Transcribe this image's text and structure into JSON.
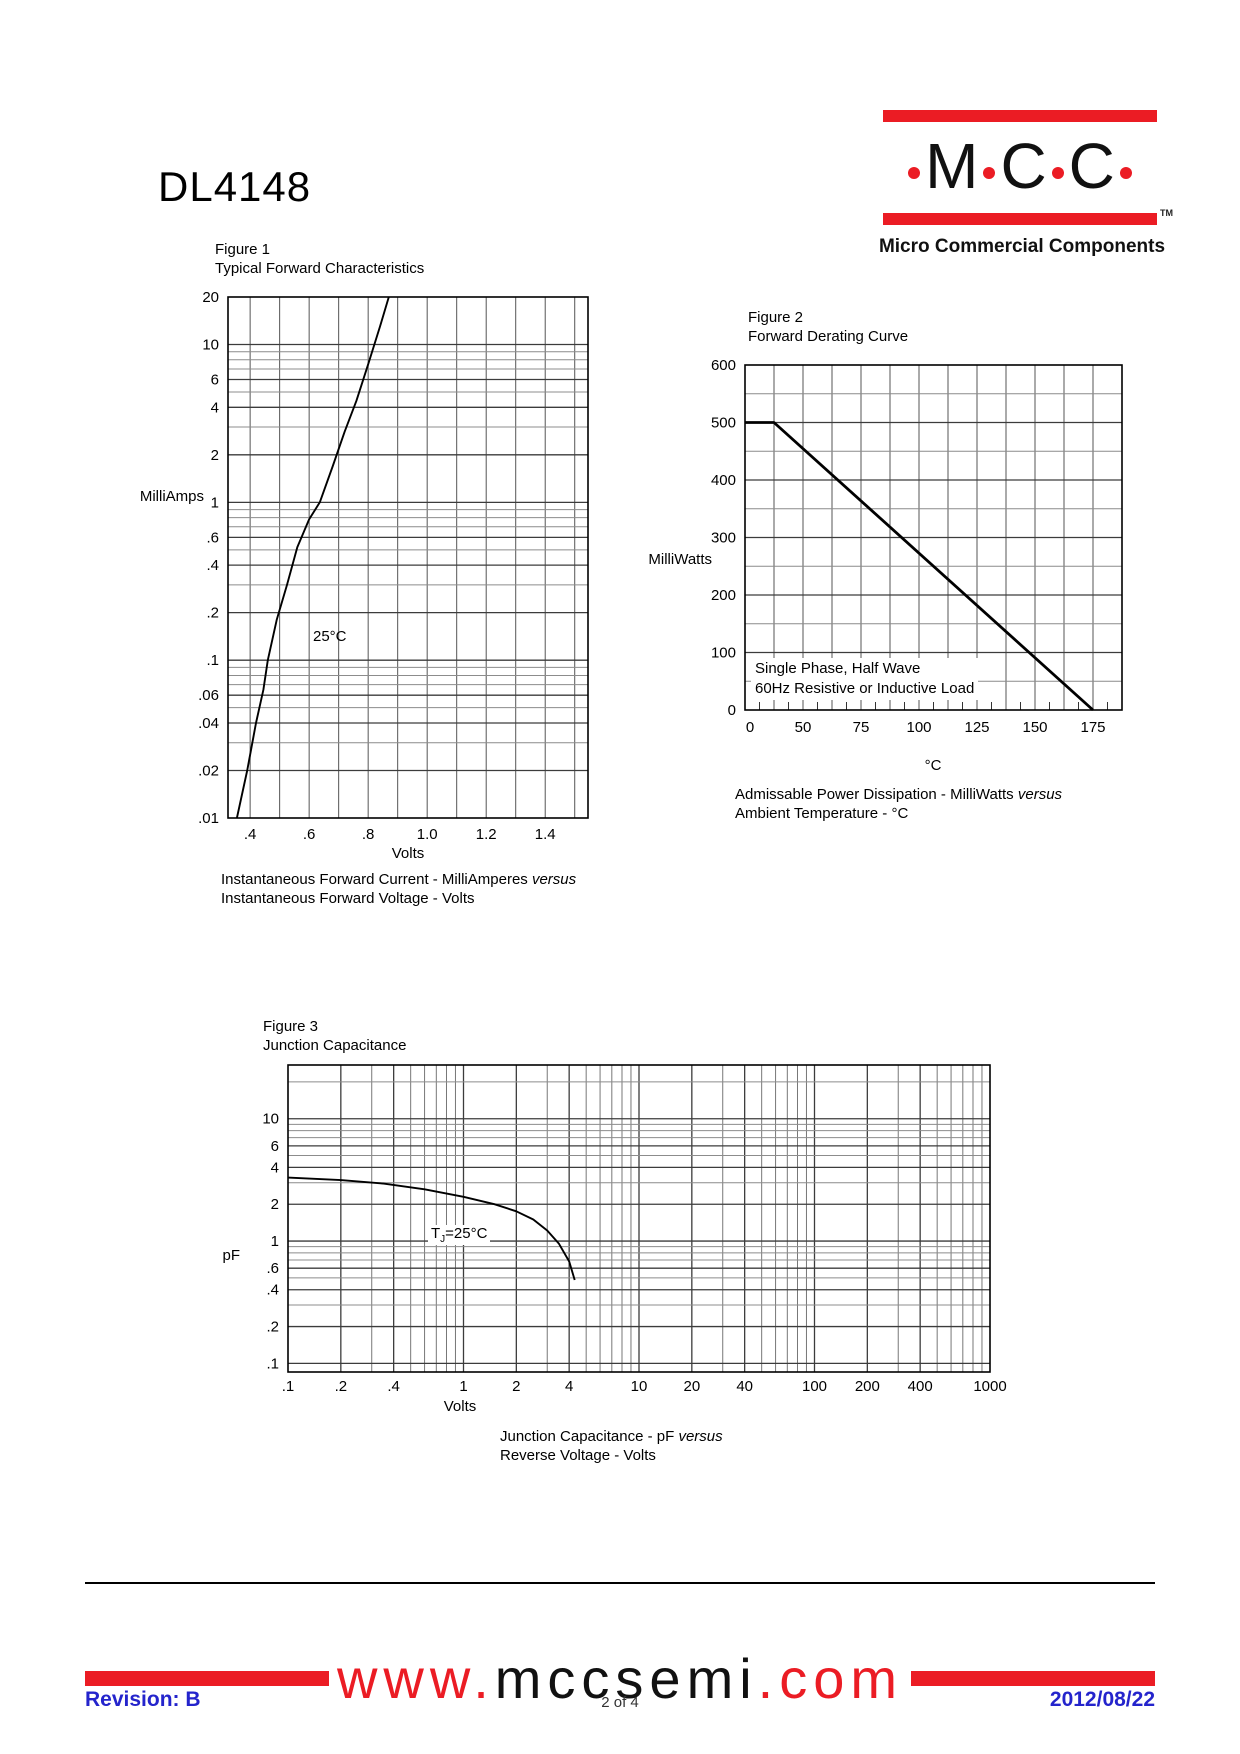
{
  "page": {
    "part_number": "DL4148",
    "page_indicator": "2 of 4",
    "revision": "Revision: B",
    "date": "2012/08/22"
  },
  "colors": {
    "brand_red": "#EB1C24",
    "footer_blue": "#2424CC",
    "grid_minor": "#8c8c8c",
    "grid_major": "#3c3c3c",
    "curve": "#000000"
  },
  "logo": {
    "letters": [
      "M",
      "C",
      "C"
    ],
    "tm": "TM",
    "subtitle": "Micro Commercial Components"
  },
  "footer": {
    "url_www": "www.",
    "url_domain": "mccsemi",
    "url_com": ".com"
  },
  "chart_data": [
    {
      "type": "line",
      "figure_label": "Figure 1",
      "title": "Typical Forward Characteristics",
      "xlabel": "Volts",
      "ylabel": "MilliAmps",
      "x_scale": "linear",
      "y_scale": "log",
      "xlim": [
        0.325,
        1.545
      ],
      "ylim": [
        0.01,
        20
      ],
      "x_ticks": [
        {
          "v": 0.4,
          "label": ".4"
        },
        {
          "v": 0.6,
          "label": ".6"
        },
        {
          "v": 0.8,
          "label": ".8"
        },
        {
          "v": 1.0,
          "label": "1.0"
        },
        {
          "v": 1.2,
          "label": "1.2"
        },
        {
          "v": 1.4,
          "label": "1.4"
        }
      ],
      "y_ticks": [
        {
          "v": 20,
          "label": "20"
        },
        {
          "v": 10,
          "label": "10"
        },
        {
          "v": 6,
          "label": "6"
        },
        {
          "v": 4,
          "label": "4"
        },
        {
          "v": 2,
          "label": "2"
        },
        {
          "v": 1,
          "label": "1"
        },
        {
          "v": 0.6,
          "label": ".6"
        },
        {
          "v": 0.4,
          "label": ".4"
        },
        {
          "v": 0.2,
          "label": ".2"
        },
        {
          "v": 0.1,
          "label": ".1"
        },
        {
          "v": 0.06,
          "label": ".06"
        },
        {
          "v": 0.04,
          "label": ".04"
        },
        {
          "v": 0.02,
          "label": ".02"
        },
        {
          "v": 0.01,
          "label": ".01"
        }
      ],
      "annotation": "25°C",
      "caption": {
        "line1": "Instantaneous Forward Current - MilliAmperes ",
        "italic": "versus",
        "line2": "Instantaneous Forward Voltage - Volts"
      },
      "series": [
        {
          "name": "forward-current-25C",
          "points": [
            [
              0.355,
              0.01
            ],
            [
              0.39,
              0.02
            ],
            [
              0.42,
              0.04
            ],
            [
              0.445,
              0.065
            ],
            [
              0.46,
              0.1
            ],
            [
              0.49,
              0.18
            ],
            [
              0.525,
              0.3
            ],
            [
              0.56,
              0.52
            ],
            [
              0.6,
              0.78
            ],
            [
              0.636,
              1.0
            ],
            [
              0.68,
              1.7
            ],
            [
              0.72,
              2.8
            ],
            [
              0.76,
              4.4
            ],
            [
              0.8,
              7.5
            ],
            [
              0.84,
              13
            ],
            [
              0.87,
              20
            ]
          ]
        }
      ]
    },
    {
      "type": "line",
      "figure_label": "Figure 2",
      "title": "Forward Derating Curve",
      "xlabel": "°C",
      "ylabel": "MilliWatts",
      "x_scale": "linear-compressed-below-50",
      "y_scale": "linear",
      "xlim": [
        0,
        187.5
      ],
      "ylim": [
        0,
        600
      ],
      "x_ticks": [
        {
          "v": 0,
          "label": "0"
        },
        {
          "v": 50,
          "label": "50"
        },
        {
          "v": 75,
          "label": "75"
        },
        {
          "v": 100,
          "label": "100"
        },
        {
          "v": 125,
          "label": "125"
        },
        {
          "v": 150,
          "label": "150"
        },
        {
          "v": 175,
          "label": "175"
        }
      ],
      "y_ticks": [
        {
          "v": 0,
          "label": "0"
        },
        {
          "v": 100,
          "label": "100"
        },
        {
          "v": 200,
          "label": "200"
        },
        {
          "v": 300,
          "label": "300"
        },
        {
          "v": 400,
          "label": "400"
        },
        {
          "v": 500,
          "label": "500"
        },
        {
          "v": 600,
          "label": "600"
        }
      ],
      "annotation_line1": "Single Phase, Half Wave",
      "annotation_line2": "60Hz Resistive or Inductive Load",
      "caption": {
        "line1": "Admissable Power Dissipation  -  MilliWatts ",
        "italic": "versus",
        "line2": "Ambient Temperature  - °C"
      },
      "series": [
        {
          "name": "derating-curve",
          "points": [
            [
              0,
              500
            ],
            [
              25,
              500
            ],
            [
              175,
              0
            ]
          ]
        }
      ]
    },
    {
      "type": "line",
      "figure_label": "Figure 3",
      "title": "Junction Capacitance",
      "xlabel": "Volts",
      "ylabel": "pF",
      "x_scale": "log",
      "y_scale": "log",
      "xlim": [
        0.1,
        1000
      ],
      "ylim": [
        0.085,
        27.5
      ],
      "x_ticks": [
        {
          "v": 0.1,
          "label": ".1"
        },
        {
          "v": 0.2,
          "label": ".2"
        },
        {
          "v": 0.4,
          "label": ".4"
        },
        {
          "v": 1,
          "label": "1"
        },
        {
          "v": 2,
          "label": "2"
        },
        {
          "v": 4,
          "label": "4"
        },
        {
          "v": 10,
          "label": "10"
        },
        {
          "v": 20,
          "label": "20"
        },
        {
          "v": 40,
          "label": "40"
        },
        {
          "v": 100,
          "label": "100"
        },
        {
          "v": 200,
          "label": "200"
        },
        {
          "v": 400,
          "label": "400"
        },
        {
          "v": 1000,
          "label": "1000"
        }
      ],
      "y_ticks": [
        {
          "v": 10,
          "label": "10"
        },
        {
          "v": 6,
          "label": "6"
        },
        {
          "v": 4,
          "label": "4"
        },
        {
          "v": 2,
          "label": "2"
        },
        {
          "v": 1,
          "label": "1"
        },
        {
          "v": 0.6,
          "label": ".6"
        },
        {
          "v": 0.4,
          "label": ".4"
        },
        {
          "v": 0.2,
          "label": ".2"
        },
        {
          "v": 0.1,
          "label": ".1"
        }
      ],
      "annotation": {
        "pre": "T",
        "sub": "J",
        "post": "=25°C"
      },
      "caption": {
        "line1": "Junction Capacitance - pF ",
        "italic": "versus",
        "line2": "Reverse Voltage - Volts"
      },
      "series": [
        {
          "name": "junction-capacitance-25C",
          "points": [
            [
              0.1,
              3.3
            ],
            [
              0.2,
              3.15
            ],
            [
              0.35,
              2.95
            ],
            [
              0.6,
              2.65
            ],
            [
              1,
              2.3
            ],
            [
              1.5,
              2.0
            ],
            [
              2,
              1.75
            ],
            [
              2.5,
              1.5
            ],
            [
              3,
              1.22
            ],
            [
              3.5,
              0.95
            ],
            [
              4,
              0.68
            ],
            [
              4.3,
              0.48
            ]
          ]
        }
      ]
    }
  ]
}
